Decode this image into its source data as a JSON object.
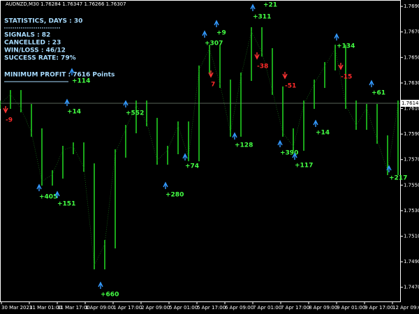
{
  "window": {
    "title": "AUDNZD,M30 1.76284 1.76347 1.76266 1.76307"
  },
  "stats": {
    "heading": "STATISTICS, DAYS : 30",
    "signals": "SIGNALS : 82",
    "cancelled": "CANCELLED : 23",
    "winloss": "WIN/LOSS : 46/12",
    "rate": "SUCCESS RATE: 79%",
    "profit": "MINIMUM PROFIT : 7616 Points"
  },
  "signals": [
    {
      "text": "+21",
      "kind": "win"
    },
    {
      "text": "+311",
      "kind": "win"
    },
    {
      "text": "+9",
      "kind": "win"
    },
    {
      "text": "+307",
      "kind": "win"
    },
    {
      "text": "+134",
      "kind": "win"
    },
    {
      "text": "+114",
      "kind": "win"
    },
    {
      "text": "+14",
      "kind": "win"
    },
    {
      "text": "+552",
      "kind": "win"
    },
    {
      "text": "+61",
      "kind": "win"
    },
    {
      "text": "+14",
      "kind": "win"
    },
    {
      "text": "+128",
      "kind": "win"
    },
    {
      "text": "+390",
      "kind": "win"
    },
    {
      "text": "+117",
      "kind": "win"
    },
    {
      "text": "+74",
      "kind": "win"
    },
    {
      "text": "+280",
      "kind": "win"
    },
    {
      "text": "+405",
      "kind": "win"
    },
    {
      "text": "+151",
      "kind": "win"
    },
    {
      "text": "+217",
      "kind": "win"
    },
    {
      "text": "+660",
      "kind": "win"
    },
    {
      "text": "-9",
      "kind": "loss"
    },
    {
      "text": "7",
      "kind": "loss"
    },
    {
      "text": "-38",
      "kind": "loss"
    },
    {
      "text": "-51",
      "kind": "loss"
    },
    {
      "text": "-15",
      "kind": "loss"
    }
  ],
  "price_axis": {
    "ylim": [
      1.746,
      1.7695
    ],
    "ticks": [
      {
        "value": 1.769,
        "label": "1.76900"
      },
      {
        "value": 1.767,
        "label": "1.76700"
      },
      {
        "value": 1.765,
        "label": "1.76500"
      },
      {
        "value": 1.763,
        "label": "1.76300"
      },
      {
        "value": 1.761,
        "label": "1.76100"
      },
      {
        "value": 1.759,
        "label": "1.75900"
      },
      {
        "value": 1.757,
        "label": "1.75700"
      },
      {
        "value": 1.755,
        "label": "1.75500"
      },
      {
        "value": 1.753,
        "label": "1.75300"
      },
      {
        "value": 1.751,
        "label": "1.75100"
      },
      {
        "value": 1.749,
        "label": "1.74900"
      },
      {
        "value": 1.747,
        "label": "1.74700"
      }
    ],
    "current": {
      "value": 1.76141,
      "label": "1.76141"
    }
  },
  "time_axis": [
    "30 Mar 2021",
    "31 Mar 01:00",
    "31 Mar 17:00",
    "1 Apr 09:00",
    "1 Apr 17:00",
    "2 Apr 09:00",
    "5 Apr 01:00",
    "5 Apr 17:00",
    "6 Apr 09:00",
    "7 Apr 01:00",
    "7 Apr 17:00",
    "8 Apr 09:00",
    "9 Apr 01:00",
    "9 Apr 17:00",
    "12 Apr 09:00"
  ],
  "closes": [
    1.7613,
    1.76212,
    1.76103,
    1.75912,
    1.75529,
    1.75584,
    1.75775,
    1.75802,
    1.75638,
    1.74873,
    1.75037,
    1.75748,
    1.75939,
    1.7613,
    1.75994,
    1.75693,
    1.75775,
    1.75966,
    1.7572,
    1.76404,
    1.76567,
    1.76294,
    1.75912,
    1.76349,
    1.76704,
    1.7654,
    1.7624,
    1.75912,
    1.75802,
    1.7613,
    1.76294,
    1.76431,
    1.76567,
    1.7613,
    1.75966,
    1.76103,
    1.75857,
    1.75611,
    1.7613
  ]
}
